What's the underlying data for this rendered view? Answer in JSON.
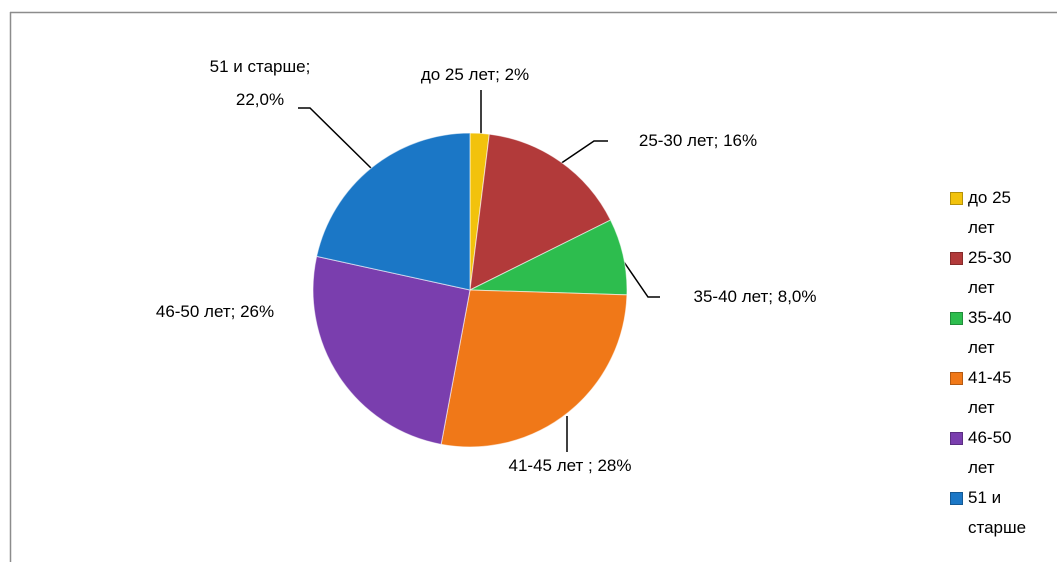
{
  "chart_data": {
    "type": "pie",
    "categories": [
      "до 25 лет",
      "25-30 лет",
      "35-40 лет",
      "41-45 лет",
      "46-50 лет",
      "51 и старше"
    ],
    "values": [
      2,
      16,
      8,
      28,
      26,
      22
    ],
    "value_labels": [
      "до 25 лет; 2%",
      "25-30 лет; 16%",
      "35-40 лет; 8,0%",
      "41-45 лет ; 28%",
      "46-50 лет; 26%",
      "51 и старше; 22,0%"
    ],
    "colors": [
      "#f2c20c",
      "#b23a3a",
      "#2dbd4e",
      "#f07818",
      "#7a3eae",
      "#1b77c6"
    ],
    "legend": "right"
  }
}
